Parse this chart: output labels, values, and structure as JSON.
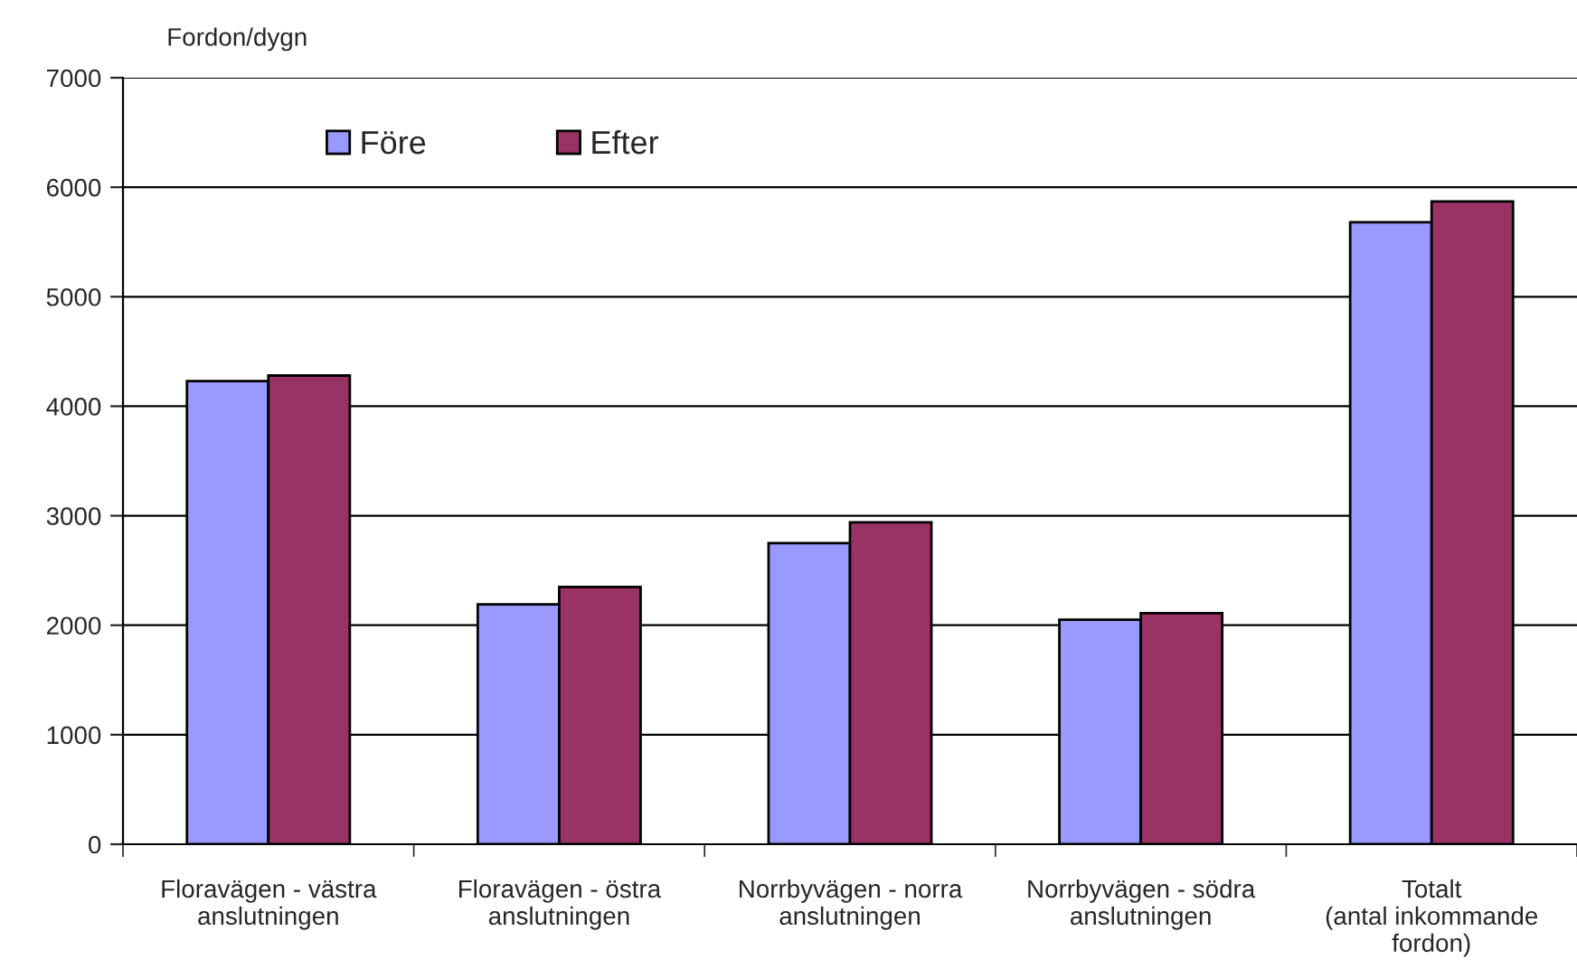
{
  "chart_data": {
    "type": "bar",
    "ylabel": "Fordon/dygn",
    "categories": [
      "Floravägen - västra\nanslutningen",
      "Floravägen - östra\nanslutningen",
      "Norrbyvägen - norra\nanslutningen",
      "Norrbyvägen - södra\nanslutningen",
      "Totalt\n(antal inkommande\nfordon)"
    ],
    "series": [
      {
        "name": "Före",
        "color": "#9999ff",
        "values": [
          4230,
          2190,
          2750,
          2050,
          5680
        ]
      },
      {
        "name": "Efter",
        "color": "#993366",
        "values": [
          4280,
          2350,
          2940,
          2110,
          5870
        ]
      }
    ],
    "ylim": [
      0,
      7000
    ],
    "yticks": [
      0,
      1000,
      2000,
      3000,
      4000,
      5000,
      6000,
      7000
    ],
    "grid": "y",
    "legend": "top left"
  }
}
